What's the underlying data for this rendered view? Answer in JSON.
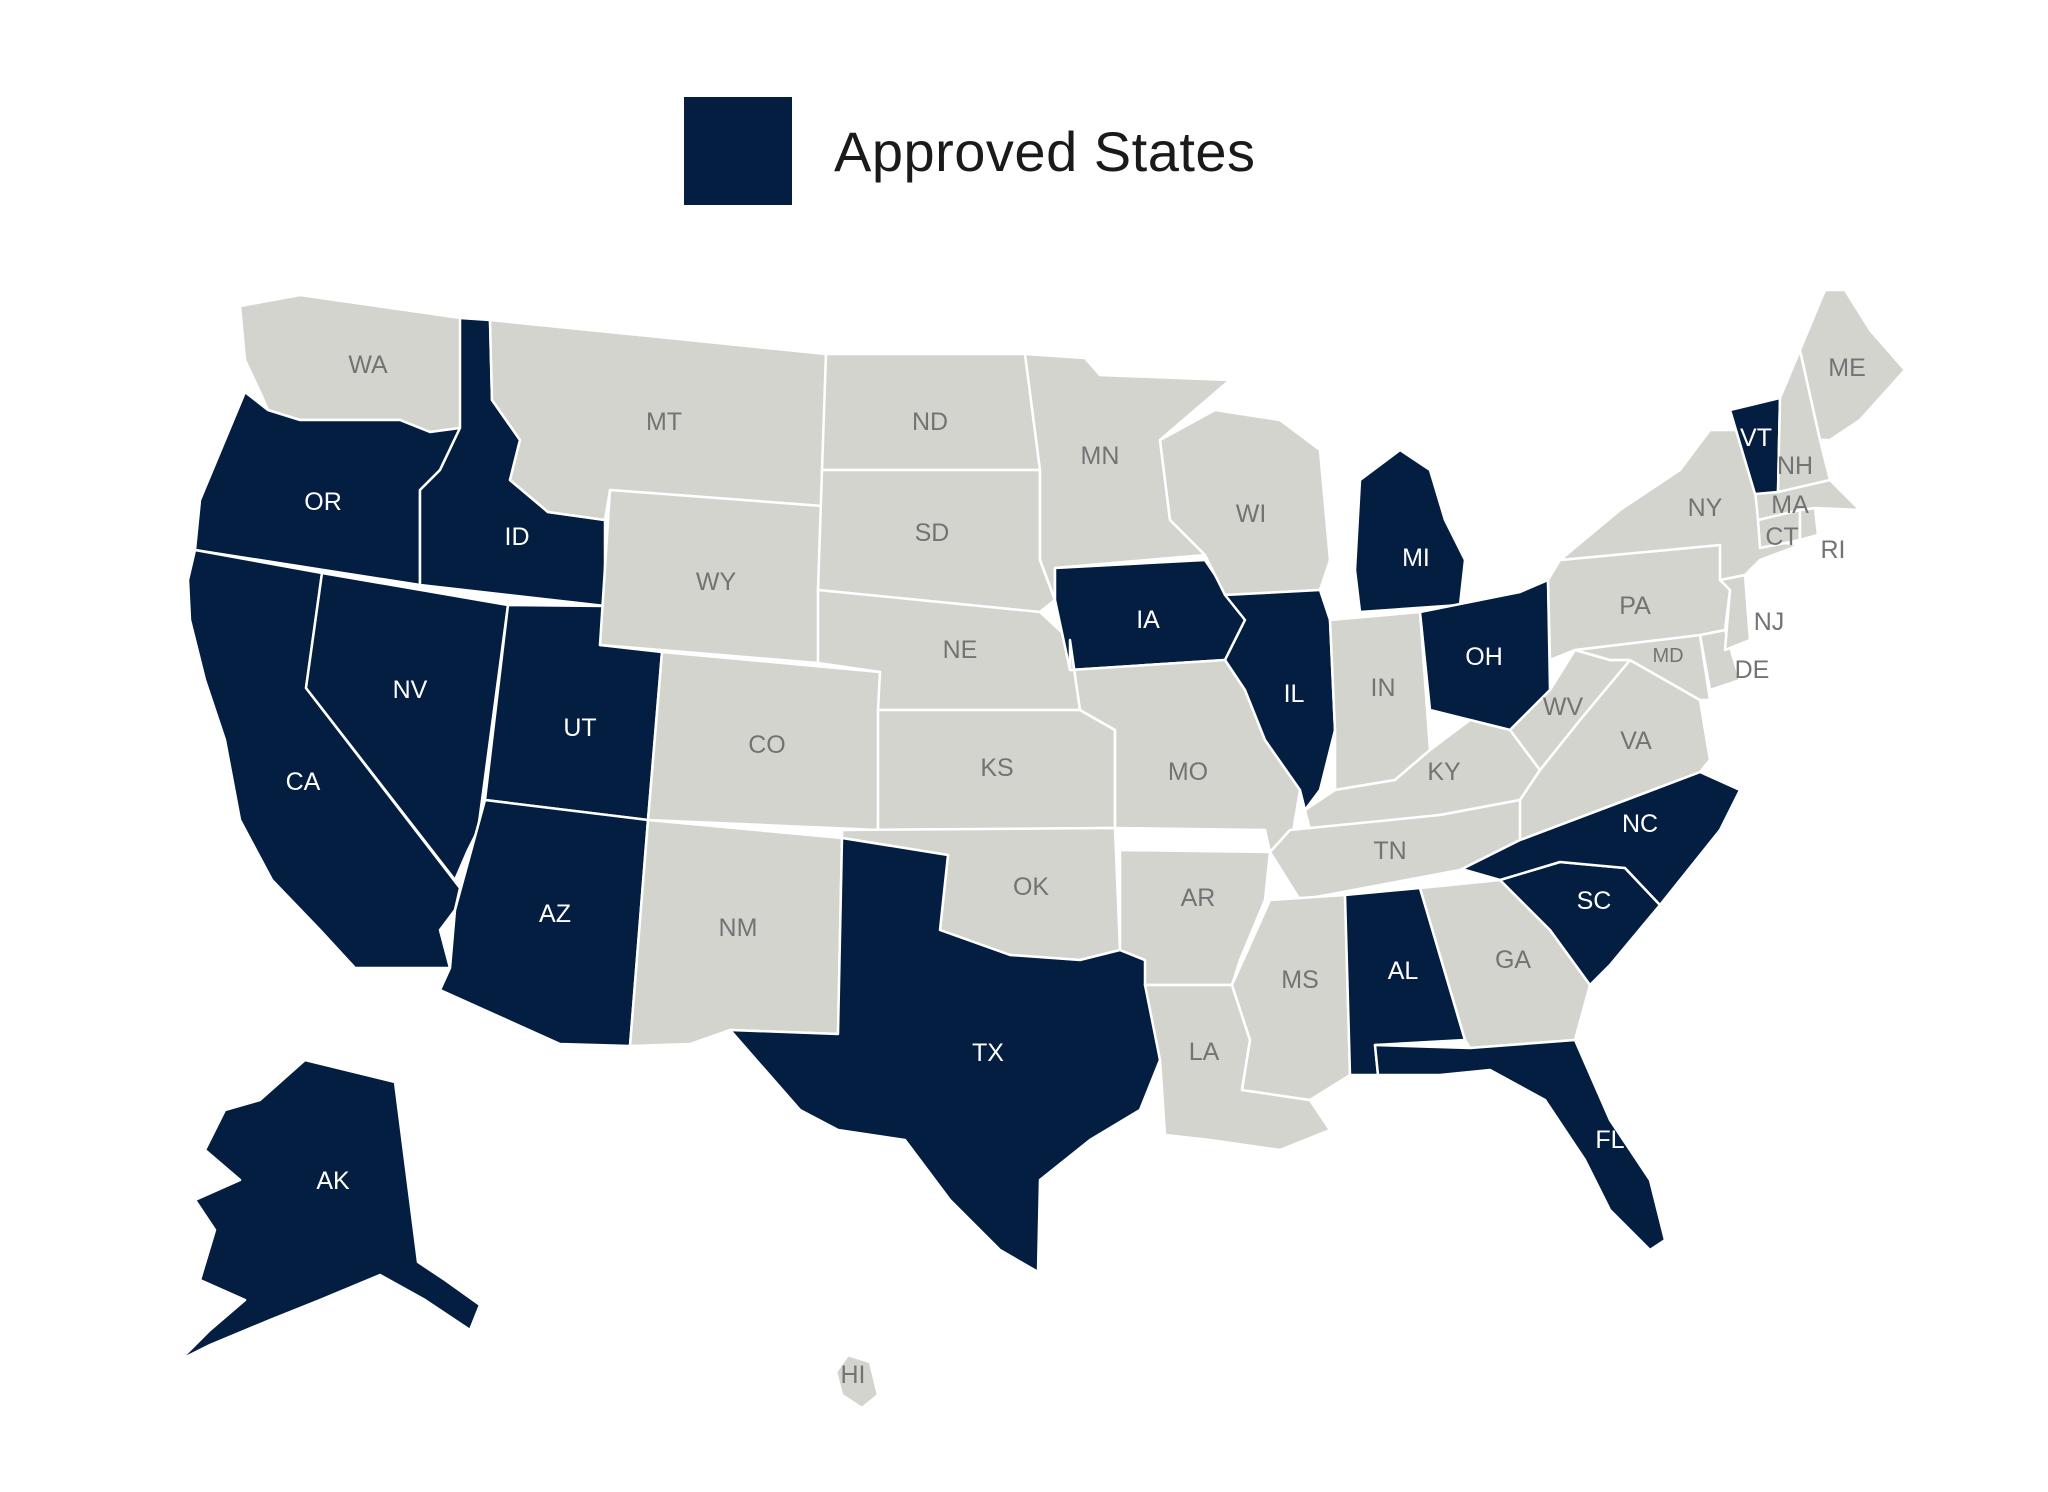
{
  "legend": {
    "label": "Approved States"
  },
  "colors": {
    "approved": "#041e42",
    "other": "#d4d4cf",
    "label_on_approved": "#ffffff",
    "label_on_other": "#737373"
  },
  "states": [
    {
      "code": "WA",
      "approved": false
    },
    {
      "code": "OR",
      "approved": true
    },
    {
      "code": "CA",
      "approved": true
    },
    {
      "code": "NV",
      "approved": true
    },
    {
      "code": "ID",
      "approved": true
    },
    {
      "code": "UT",
      "approved": true
    },
    {
      "code": "AZ",
      "approved": true
    },
    {
      "code": "MT",
      "approved": false
    },
    {
      "code": "WY",
      "approved": false
    },
    {
      "code": "CO",
      "approved": false
    },
    {
      "code": "NM",
      "approved": false
    },
    {
      "code": "ND",
      "approved": false
    },
    {
      "code": "SD",
      "approved": false
    },
    {
      "code": "NE",
      "approved": false
    },
    {
      "code": "KS",
      "approved": false
    },
    {
      "code": "OK",
      "approved": false
    },
    {
      "code": "TX",
      "approved": true
    },
    {
      "code": "MN",
      "approved": false
    },
    {
      "code": "IA",
      "approved": true
    },
    {
      "code": "MO",
      "approved": false
    },
    {
      "code": "AR",
      "approved": false
    },
    {
      "code": "LA",
      "approved": false
    },
    {
      "code": "WI",
      "approved": false
    },
    {
      "code": "IL",
      "approved": true
    },
    {
      "code": "MI",
      "approved": true
    },
    {
      "code": "IN",
      "approved": false
    },
    {
      "code": "OH",
      "approved": true
    },
    {
      "code": "KY",
      "approved": false
    },
    {
      "code": "TN",
      "approved": false
    },
    {
      "code": "MS",
      "approved": false
    },
    {
      "code": "AL",
      "approved": true
    },
    {
      "code": "GA",
      "approved": false
    },
    {
      "code": "FL",
      "approved": true
    },
    {
      "code": "SC",
      "approved": true
    },
    {
      "code": "NC",
      "approved": true
    },
    {
      "code": "VA",
      "approved": false
    },
    {
      "code": "WV",
      "approved": false
    },
    {
      "code": "MD",
      "approved": false
    },
    {
      "code": "DE",
      "approved": false
    },
    {
      "code": "PA",
      "approved": false
    },
    {
      "code": "NJ",
      "approved": false
    },
    {
      "code": "NY",
      "approved": false
    },
    {
      "code": "CT",
      "approved": false
    },
    {
      "code": "RI",
      "approved": false
    },
    {
      "code": "MA",
      "approved": false
    },
    {
      "code": "VT",
      "approved": true
    },
    {
      "code": "NH",
      "approved": false
    },
    {
      "code": "ME",
      "approved": false
    },
    {
      "code": "AK",
      "approved": true
    },
    {
      "code": "HI",
      "approved": false
    }
  ]
}
